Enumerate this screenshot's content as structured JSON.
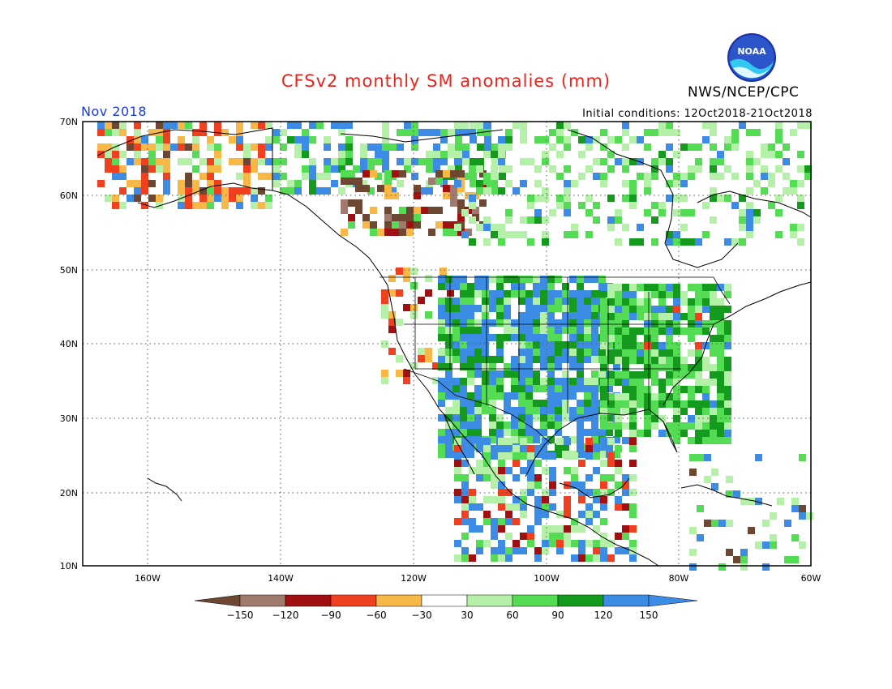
{
  "header": {
    "title": "CFSv2 monthly SM anomalies (mm)",
    "month": "Nov 2018",
    "initial_conditions": "Initial conditions: 12Oct2018-21Oct2018",
    "agency": "NWS/NCEP/CPC",
    "logo_text": "NOAA"
  },
  "map": {
    "lat_ticks": [
      "70N",
      "60N",
      "50N",
      "40N",
      "30N",
      "20N",
      "10N"
    ],
    "lon_ticks": [
      "160W",
      "140W",
      "120W",
      "100W",
      "80W",
      "60W"
    ]
  },
  "legend": {
    "labels": [
      "−150",
      "−120",
      "−90",
      "−60",
      "−30",
      "30",
      "60",
      "90",
      "120",
      "150"
    ],
    "colors": [
      "#6e4732",
      "#a07a6e",
      "#a01010",
      "#f04020",
      "#f8b848",
      "#ffffff",
      "#b4f0a8",
      "#54dc54",
      "#149a1c",
      "#3c8ce6"
    ]
  },
  "chart_data": {
    "type": "heatmap",
    "title": "CFSv2 monthly SM anomalies (mm)",
    "units": "mm",
    "lat_range": [
      10,
      70
    ],
    "lon_range": [
      -170,
      -60
    ],
    "legend_bins": [
      -150,
      -120,
      -90,
      -60,
      -30,
      30,
      60,
      90,
      120,
      150
    ],
    "regions": [
      {
        "region": "Alaska (west)",
        "anomaly": "mixed dry -30 to -90, some wet 120-150"
      },
      {
        "region": "Western Canada (Alberta/BC)",
        "anomaly": "dry -90 to -150"
      },
      {
        "region": "Northern Canada / Arctic",
        "anomaly": "wet 30 to 150"
      },
      {
        "region": "California / Pacific NW",
        "anomaly": "dry -30 to -120"
      },
      {
        "region": "US Central Plains & Midwest",
        "anomaly": "wet 60 to 150"
      },
      {
        "region": "US Southeast",
        "anomaly": "wet 30 to 120"
      },
      {
        "region": "Texas / Northern Mexico",
        "anomaly": "wet 120 to 150"
      },
      {
        "region": "Central America",
        "anomaly": "mixed"
      }
    ]
  }
}
